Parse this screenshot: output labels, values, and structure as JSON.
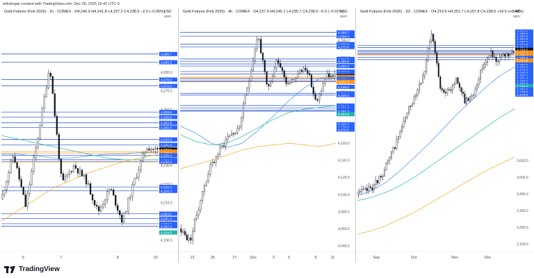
{
  "header": {
    "creator": "erikdregar created with TradingView.com, Dec 09, 2025 16:41 UTC-5"
  },
  "footer": {
    "brand": "TradingView"
  },
  "colors": {
    "up": "#ffffff",
    "down": "#131722",
    "level": "#1848cc",
    "ma_blue": "#3b8fe8",
    "ma_orange": "#f5a623",
    "ma_teal": "#22b5ad",
    "label_blue": "#2962ff",
    "label_orange": "#f7931a",
    "label_dark": "#131722"
  },
  "chart_data": [
    {
      "type": "candlestick",
      "title": "Gold Futures (Feb 2026) · 1h · COMEX",
      "ohlc_text": "O4,240.9 H4,241.8 L4,237.2 C4,238.5 −2.3 (−0.05%)",
      "currency": "USD",
      "sub": "apoc",
      "ylim": [
        4186,
        4306
      ],
      "y_ticks": [
        4190,
        4200,
        4210,
        4220,
        4230,
        4240,
        4250,
        4260,
        4270,
        4280
      ],
      "x_ticks": [
        "5",
        "7",
        "9",
        "10"
      ],
      "x_tick_pos": [
        0.14,
        0.38,
        0.74,
        0.98
      ],
      "n_bars": 75,
      "seed": 11,
      "path": [
        4212,
        4236,
        4208,
        4244,
        4284,
        4220,
        4230,
        4222,
        4205,
        4218,
        4200,
        4222,
        4240,
        4238
      ],
      "levels": [
        4289.7,
        4285.3,
        4276.0,
        4272.6,
        4258.6,
        4255.9,
        4252.8,
        4250.3,
        4243.9,
        4241.0,
        4235.4,
        4233.0,
        4232.0,
        4218.4,
        4216.3,
        4204.1,
        4201.4,
        4198.7,
        4197.4
      ],
      "orange_levels": [
        4237.4,
        4236.6,
        4231.8
      ],
      "price_labels": [
        {
          "v": 4289.7,
          "t": "4,289.7",
          "c": "blue"
        },
        {
          "v": 4285.3,
          "t": "4,285.3",
          "c": "blue"
        },
        {
          "v": 4276.0,
          "t": "4,276.0",
          "c": "blue"
        },
        {
          "v": 4272.6,
          "t": "4,272.6",
          "c": "blue"
        },
        {
          "v": 4258.6,
          "t": "4,258.6",
          "c": "blue"
        },
        {
          "v": 4255.9,
          "t": "4,255.9",
          "c": "blue"
        },
        {
          "v": 4252.8,
          "t": "4,252.8",
          "c": "blue"
        },
        {
          "v": 4250.3,
          "t": "4,250.3",
          "c": "blue"
        },
        {
          "v": 4243.9,
          "t": "4,243.9",
          "c": "blue"
        },
        {
          "v": 4241.0,
          "t": "4,241.0",
          "c": "blue"
        },
        {
          "v": 4238.5,
          "t": "4,238.5",
          "c": "dark"
        },
        {
          "v": 4237.4,
          "t": "4,237.4",
          "c": "orange"
        },
        {
          "v": 4236.6,
          "t": "4,236.6",
          "c": "orange"
        },
        {
          "v": 4235.4,
          "t": "4,235.4",
          "c": "blue"
        },
        {
          "v": 4233.0,
          "t": "4,233.0",
          "c": "blue"
        },
        {
          "v": 4231.8,
          "t": "4,231.8",
          "c": "orange"
        },
        {
          "v": 4232.0,
          "t": "4,232.0",
          "c": "blue"
        },
        {
          "v": 4218.4,
          "t": "4,218.4",
          "c": "blue"
        },
        {
          "v": 4216.3,
          "t": "4,216.3",
          "c": "blue"
        },
        {
          "v": 4204.1,
          "t": "4,204.1",
          "c": "blue"
        },
        {
          "v": 4201.4,
          "t": "4,201.4",
          "c": "blue"
        },
        {
          "v": 4198.7,
          "t": "4,198.7",
          "c": "blue"
        },
        {
          "v": 4197.4,
          "t": "4,197.4",
          "c": "blue"
        },
        {
          "v": 4194.0,
          "t": "4,194.0",
          "c": "teal"
        }
      ],
      "ma": [
        {
          "color": "ma_blue",
          "path": [
            4236,
            4236,
            4235,
            4234,
            4234,
            4235,
            4236,
            4236,
            4237,
            4237
          ]
        },
        {
          "color": "ma_teal",
          "path": [
            4246,
            4244,
            4242,
            4240,
            4238,
            4236,
            4234,
            4233,
            4233,
            4233
          ]
        },
        {
          "color": "ma_orange",
          "path": [
            4200,
            4206,
            4212,
            4218,
            4222,
            4226,
            4229,
            4232,
            4234,
            4236
          ]
        }
      ]
    },
    {
      "type": "candlestick",
      "title": "Gold Futures (Feb 2026) · 4h · COMEX",
      "ohlc_text": "O4,237.9 H4,245.1 L4,235.7 C4,238.5 −0.3 (−0.01%)",
      "currency": "USD",
      "sub": "apoc",
      "ylim": [
        4038,
        4300
      ],
      "y_ticks": [
        4040,
        4060,
        4080,
        4100,
        4120,
        4140,
        4160,
        4180,
        4200,
        4220,
        4240,
        4260,
        4280
      ],
      "x_ticks": [
        "21",
        "25",
        "27",
        "Dec",
        "3",
        "5",
        "9",
        "11"
      ],
      "x_tick_pos": [
        0.08,
        0.21,
        0.35,
        0.47,
        0.6,
        0.7,
        0.87,
        0.98
      ],
      "n_bars": 80,
      "seed": 23,
      "path": [
        4060,
        4045,
        4090,
        4130,
        4150,
        4170,
        4175,
        4230,
        4288,
        4220,
        4260,
        4230,
        4240,
        4250,
        4205,
        4240,
        4238
      ],
      "levels": [
        4289.7,
        4285.3,
        4276.0,
        4272.6,
        4258.6,
        4255.9,
        4252.8,
        4250.3,
        4243.9,
        4241.0,
        4235.4,
        4233.0,
        4232.0,
        4218.4,
        4216.3,
        4204.1,
        4201.4,
        4198.7,
        4197.4
      ],
      "orange_levels": [
        4237.4,
        4236.6,
        4231.8
      ],
      "price_labels": [
        {
          "v": 4289.7,
          "t": "4,289.7",
          "c": "blue"
        },
        {
          "v": 4285.3,
          "t": "4,285.3",
          "c": "blue"
        },
        {
          "v": 4276.0,
          "t": "4,276.0",
          "c": "blue"
        },
        {
          "v": 4272.6,
          "t": "4,272.6",
          "c": "blue"
        },
        {
          "v": 4258.6,
          "t": "4,258.6",
          "c": "blue"
        },
        {
          "v": 4255.9,
          "t": "4,255.9",
          "c": "blue"
        },
        {
          "v": 4250.3,
          "t": "4,250.3",
          "c": "blue"
        },
        {
          "v": 4243.9,
          "t": "4,243.9",
          "c": "blue"
        },
        {
          "v": 4241.0,
          "t": "4,241.0",
          "c": "blue"
        },
        {
          "v": 4238.5,
          "t": "4,238.5",
          "c": "dark"
        },
        {
          "v": 4237.4,
          "t": "4,237.4",
          "c": "orange"
        },
        {
          "v": 4236.6,
          "t": "4,236.6",
          "c": "orange"
        },
        {
          "v": 4235.4,
          "t": "4,235.4",
          "c": "blue"
        },
        {
          "v": 4233.0,
          "t": "4,233.0",
          "c": "blue"
        },
        {
          "v": 4231.8,
          "t": "4,231.8",
          "c": "orange"
        },
        {
          "v": 4226.0,
          "t": "4,226.0",
          "c": "blue"
        },
        {
          "v": 4218.4,
          "t": "4,218.4",
          "c": "blue"
        },
        {
          "v": 4216.3,
          "t": "4,216.3",
          "c": "blue"
        },
        {
          "v": 4204.1,
          "t": "4,204.1",
          "c": "blue"
        },
        {
          "v": 4201.4,
          "t": "4,201.4",
          "c": "blue"
        },
        {
          "v": 4198.7,
          "t": "4,198.7",
          "c": "blue"
        },
        {
          "v": 4197.4,
          "t": "4,197.4",
          "c": "blue"
        },
        {
          "v": 4194.0,
          "t": "4,194.0",
          "c": "teal"
        },
        {
          "v": 4182.2,
          "t": "4,182.2",
          "c": "blue"
        },
        {
          "v": 4178.6,
          "t": "4,178.6",
          "c": "blue"
        },
        {
          "v": 4176.0,
          "t": "4,176.0",
          "c": "blue"
        }
      ],
      "ma": [
        {
          "color": "ma_blue",
          "path": [
            4180,
            4172,
            4160,
            4155,
            4160,
            4175,
            4192,
            4210,
            4225,
            4236,
            4240
          ]
        },
        {
          "color": "ma_teal",
          "path": [
            4170,
            4162,
            4158,
            4160,
            4168,
            4178,
            4188,
            4196,
            4200,
            4202,
            4204
          ]
        },
        {
          "color": "ma_orange",
          "path": [
            4130,
            4135,
            4140,
            4146,
            4152,
            4156,
            4158,
            4160,
            4158,
            4156,
            4160
          ]
        }
      ]
    },
    {
      "type": "candlestick",
      "title": "Gold Futures (Feb 2026) · 1D · COMEX",
      "ohlc_text": "O4,219.6 H4,251.7 L4,197.8 C4,238.5 +18.6 (+0.44%)",
      "currency": "USD",
      "sub": "apoc",
      "ylim": [
        3080,
        4420
      ],
      "y_ticks": [
        3100,
        3200,
        3300,
        3400,
        3500,
        3600
      ],
      "x_ticks": [
        "Sep",
        "Oct",
        "Nov",
        "Dec"
      ],
      "x_tick_pos": [
        0.12,
        0.36,
        0.62,
        0.83
      ],
      "n_bars": 90,
      "seed": 37,
      "path": [
        3400,
        3420,
        3450,
        3520,
        3620,
        3750,
        3880,
        4000,
        4120,
        4360,
        4050,
        4000,
        4100,
        3950,
        4000,
        4150,
        4250,
        4200,
        4230,
        4240
      ],
      "levels": [
        4289.7,
        4276.0,
        4258.6,
        4250.3,
        4241.0,
        4233.0,
        4218.4,
        4204.1
      ],
      "orange_levels": [
        4237.4,
        4231.8
      ],
      "price_labels": [
        {
          "v": 4372.6,
          "t": "4,272.6",
          "c": "blue"
        },
        {
          "v": 4358.6,
          "t": "4,258.6",
          "c": "blue"
        },
        {
          "v": 4343.0,
          "t": "4,255.9",
          "c": "blue"
        },
        {
          "v": 4327.0,
          "t": "4,252.8",
          "c": "blue"
        },
        {
          "v": 4311.0,
          "t": "4,250.3",
          "c": "blue"
        },
        {
          "v": 4295.0,
          "t": "4,243.9",
          "c": "blue"
        },
        {
          "v": 4279.0,
          "t": "4,241.0",
          "c": "blue"
        },
        {
          "v": 4263.0,
          "t": "4,238.5",
          "c": "dark"
        },
        {
          "v": 4247.0,
          "t": "4,237.4",
          "c": "orange"
        },
        {
          "v": 4231.0,
          "t": "4,236.6",
          "c": "orange"
        },
        {
          "v": 4215.0,
          "t": "4,235.4",
          "c": "blue"
        },
        {
          "v": 4199.0,
          "t": "4,231.8",
          "c": "orange"
        },
        {
          "v": 4175.0,
          "t": "4,233.0",
          "c": "blue"
        },
        {
          "v": 4159.0,
          "t": "4,232.0",
          "c": "blue"
        },
        {
          "v": 4143.0,
          "t": "4,218.4",
          "c": "blue"
        },
        {
          "v": 4127.0,
          "t": "4,216.3",
          "c": "blue"
        },
        {
          "v": 4109.0,
          "t": "4,204.1",
          "c": "blue"
        },
        {
          "v": 4093.0,
          "t": "4,201.4",
          "c": "blue"
        },
        {
          "v": 4077.0,
          "t": "4,198.7",
          "c": "blue"
        },
        {
          "v": 4061.0,
          "t": "4,197.4",
          "c": "blue"
        },
        {
          "v": 4045.0,
          "t": "4,194.0",
          "c": "teal"
        },
        {
          "v": 4027.0,
          "t": "4,182.2",
          "c": "blue"
        },
        {
          "v": 4011.0,
          "t": "4,178.6",
          "c": "blue"
        },
        {
          "v": 3995.0,
          "t": "4,176.0",
          "c": "blue"
        }
      ],
      "ma": [
        {
          "color": "ma_blue",
          "path": [
            3390,
            3420,
            3470,
            3540,
            3620,
            3700,
            3790,
            3880,
            3960,
            4040,
            4110,
            4160
          ]
        },
        {
          "color": "ma_teal",
          "path": [
            3360,
            3380,
            3410,
            3450,
            3500,
            3560,
            3620,
            3680,
            3740,
            3800,
            3860,
            3910
          ]
        },
        {
          "color": "ma_orange",
          "path": [
            3160,
            3180,
            3210,
            3250,
            3290,
            3340,
            3390,
            3440,
            3490,
            3540,
            3580,
            3620
          ]
        }
      ]
    }
  ]
}
